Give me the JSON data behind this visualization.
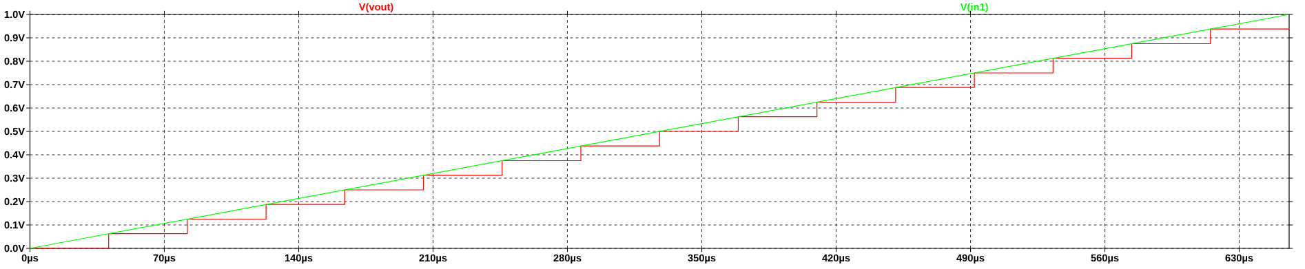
{
  "chart_data": {
    "type": "line",
    "legend": "top",
    "grid": true,
    "marker": "none",
    "line_style": "solid",
    "xlim": [
      0,
      656
    ],
    "ylim": [
      0,
      1.0
    ],
    "xticks": [
      {
        "value": 0,
        "label": "0µs"
      },
      {
        "value": 70,
        "label": "70µs"
      },
      {
        "value": 140,
        "label": "140µs"
      },
      {
        "value": 210,
        "label": "210µs"
      },
      {
        "value": 280,
        "label": "280µs"
      },
      {
        "value": 350,
        "label": "350µs"
      },
      {
        "value": 420,
        "label": "420µs"
      },
      {
        "value": 490,
        "label": "490µs"
      },
      {
        "value": 560,
        "label": "560µs"
      },
      {
        "value": 630,
        "label": "630µs"
      }
    ],
    "yticks": [
      {
        "value": 0,
        "label": "0.0V"
      },
      {
        "value": 0.1,
        "label": "0.1V"
      },
      {
        "value": 0.2,
        "label": "0.2V"
      },
      {
        "value": 0.3,
        "label": "0.3V"
      },
      {
        "value": 0.4,
        "label": "0.4V"
      },
      {
        "value": 0.5,
        "label": "0.5V"
      },
      {
        "value": 0.6,
        "label": "0.6V"
      },
      {
        "value": 0.7,
        "label": "0.7V"
      },
      {
        "value": 0.8,
        "label": "0.8V"
      },
      {
        "value": 0.9,
        "label": "0.9V"
      },
      {
        "value": 1.0,
        "label": "1.0V"
      }
    ],
    "series": [
      {
        "name": "V(vout)",
        "type": "step",
        "color": "#ff0000",
        "x": [
          0,
          41,
          82,
          123,
          164,
          205,
          246,
          287,
          328,
          369,
          410,
          451,
          492,
          533,
          574,
          615,
          656
        ],
        "values": [
          0,
          0.063,
          0.125,
          0.188,
          0.25,
          0.313,
          0.375,
          0.438,
          0.5,
          0.563,
          0.625,
          0.688,
          0.75,
          0.813,
          0.875,
          0.938,
          0.938
        ]
      },
      {
        "name": "V(in1)",
        "color": "#00ff00",
        "x": [
          0,
          656
        ],
        "values": [
          0,
          1.0
        ]
      }
    ]
  }
}
